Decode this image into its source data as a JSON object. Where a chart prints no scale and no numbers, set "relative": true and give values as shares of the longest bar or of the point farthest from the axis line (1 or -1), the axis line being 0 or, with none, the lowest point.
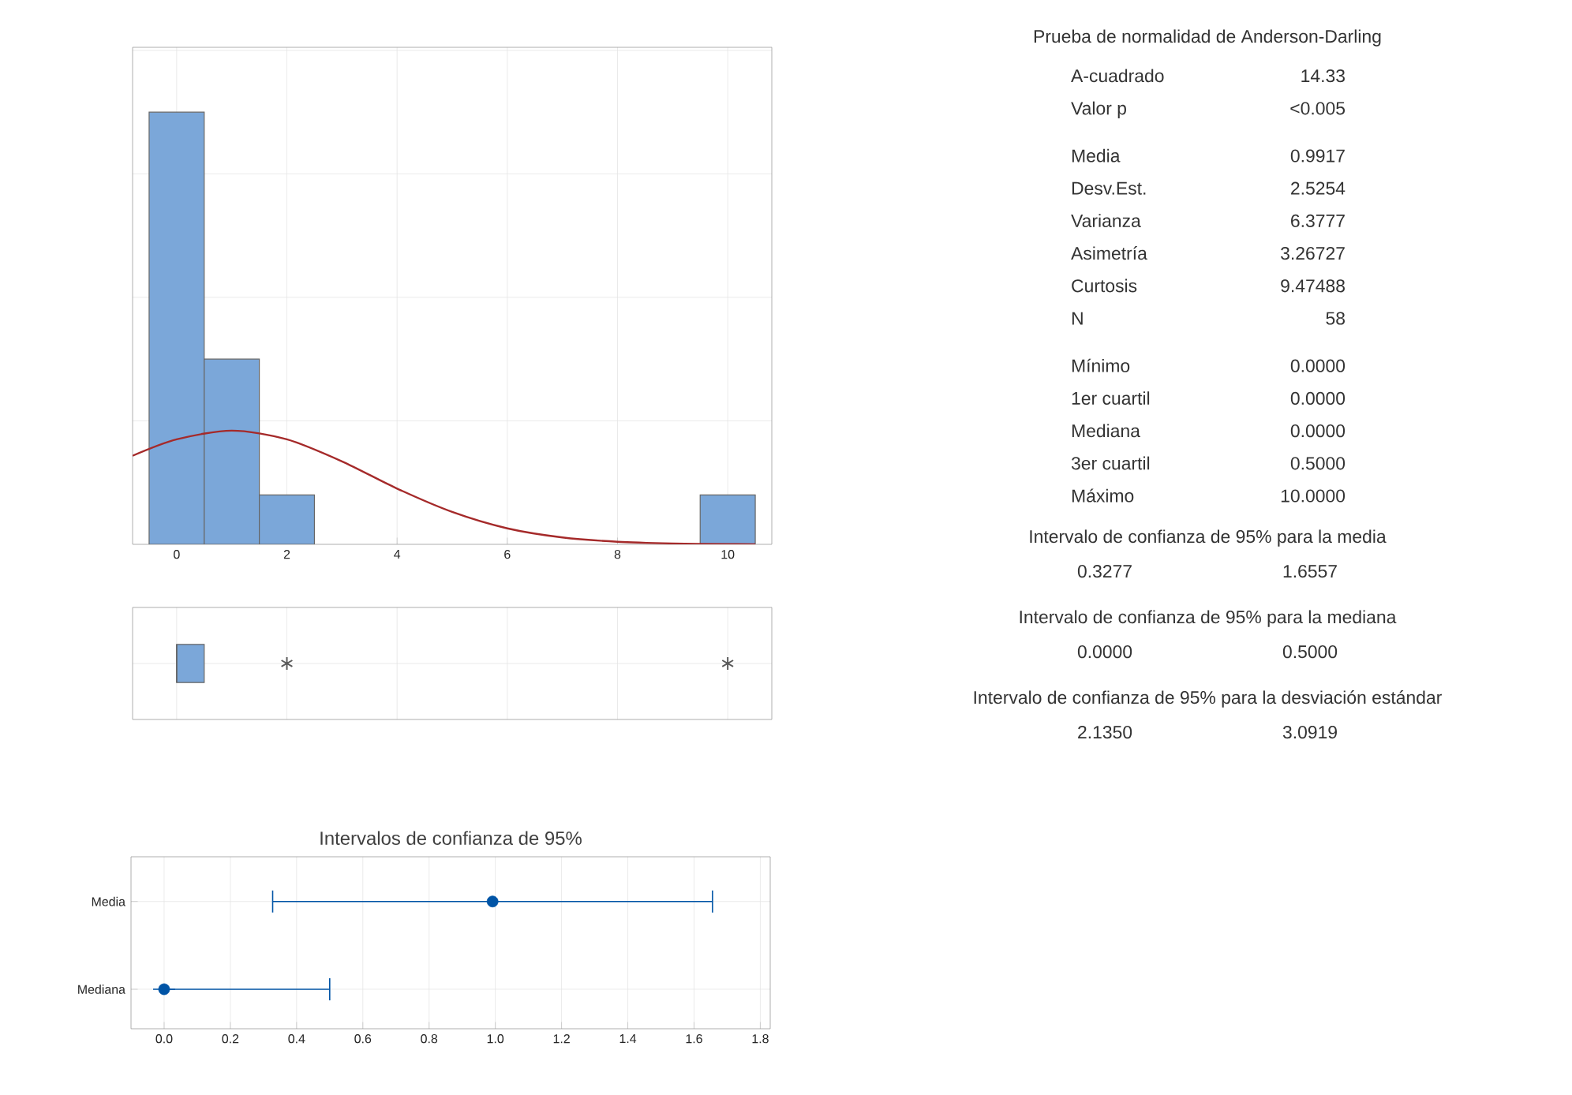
{
  "chart_data": [
    {
      "type": "histogram",
      "relative": true,
      "bins": [
        -0.5,
        0.5,
        1.5,
        2.5,
        3.5,
        4.5,
        5.5,
        6.5,
        7.5,
        8.5,
        9.5,
        10.5
      ],
      "values": [
        1,
        0.4286,
        0.1143,
        0,
        0,
        0,
        0,
        0,
        0,
        0,
        0.1143
      ],
      "color": "#7ba7d9",
      "xlim": [
        -0.8,
        10.8
      ],
      "xticks": [
        0,
        2,
        4,
        6,
        8,
        10
      ],
      "grid": true,
      "series": [
        {
          "type": "line",
          "color": "#a52a2a",
          "x": [
            -0.8,
            0,
            1,
            2,
            3,
            4,
            5,
            6,
            7,
            8,
            9,
            10,
            10.5
          ],
          "values": [
            0.205,
            0.243,
            0.263,
            0.243,
            0.192,
            0.129,
            0.075,
            0.037,
            0.016,
            0.006,
            0.002,
            0.0005,
            0.0002
          ]
        }
      ]
    },
    {
      "type": "box",
      "orientation": "horizontal",
      "categories": [
        null
      ],
      "color": "#7ba7d9",
      "boxes": [
        {
          "low": 0,
          "q1": 0,
          "median": 0,
          "q3": 0.5,
          "high": 0.5,
          "outliers": [
            2,
            10
          ]
        }
      ],
      "xlim": [
        -0.8,
        10.8
      ],
      "xticks": [
        0,
        2,
        4,
        6,
        8,
        10
      ],
      "tick_labels": false,
      "grid": true
    },
    {
      "type": "scatter",
      "title": "Intervalos de confianza de 95%",
      "orientation": "horizontal",
      "categories": [
        "Media",
        "Mediana"
      ],
      "values": [
        0.9917,
        0
      ],
      "errors": [
        [
          0.3277,
          1.6557
        ],
        [
          0,
          0.5
        ]
      ],
      "color": "#0054a6",
      "marker": "circle",
      "xlim": [
        -0.1,
        1.83
      ],
      "xticks": [
        {
          "value": 0,
          "label": "0.0"
        },
        {
          "value": 0.2,
          "label": "0.2"
        },
        {
          "value": 0.4,
          "label": "0.4"
        },
        {
          "value": 0.6,
          "label": "0.6"
        },
        {
          "value": 0.8,
          "label": "0.8"
        },
        {
          "value": 1,
          "label": "1.0"
        },
        {
          "value": 1.2,
          "label": "1.2"
        },
        {
          "value": 1.4,
          "label": "1.4"
        },
        {
          "value": 1.6,
          "label": "1.6"
        },
        {
          "value": 1.8,
          "label": "1.8"
        }
      ],
      "grid": true
    },
    {
      "type": "other",
      "title": "Prueba de normalidad de Anderson-Darling",
      "categories": [
        "A-cuadrado",
        "Valor p",
        "Media",
        "Desv.Est.",
        "Varianza",
        "Asimetría",
        "Curtosis",
        "N",
        "Mínimo",
        "1er cuartil",
        "Mediana",
        "3er cuartil",
        "Máximo"
      ],
      "value_labels": [
        "14.33",
        "<0.005",
        "0.9917",
        "2.5254",
        "6.3777",
        "3.26727",
        "9.47488",
        "58",
        "0.0000",
        "0.0000",
        "0.0000",
        "0.5000",
        "10.0000"
      ],
      "annotations": [
        "Intervalo de confianza de 95% para la media",
        "0.3277",
        "1.6557",
        "Intervalo de confianza de 95% para la mediana",
        "0.0000",
        "0.5000",
        "Intervalo de confianza de 95% para la desviación estándar",
        "2.1350",
        "3.0919"
      ]
    }
  ]
}
